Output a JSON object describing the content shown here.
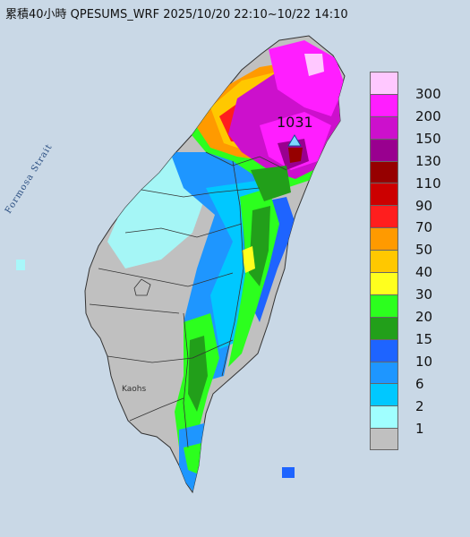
{
  "title": "累積40小時 QPESUMS_WRF 2025/10/20 22:10~10/22 14:10",
  "sea_label": "Formosa Strait",
  "city_label": "Kaohs",
  "max_value": "1031",
  "legend": [
    {
      "label": "300",
      "color": "#ffc8ff"
    },
    {
      "label": "200",
      "color": "#ff1eff"
    },
    {
      "label": "150",
      "color": "#cc10cc"
    },
    {
      "label": "130",
      "color": "#99008f"
    },
    {
      "label": "110",
      "color": "#960000"
    },
    {
      "label": "90",
      "color": "#cc0000"
    },
    {
      "label": "70",
      "color": "#ff1e1e"
    },
    {
      "label": "50",
      "color": "#ff9a00"
    },
    {
      "label": "40",
      "color": "#ffc800"
    },
    {
      "label": "30",
      "color": "#ffff1e"
    },
    {
      "label": "20",
      "color": "#2cff1e"
    },
    {
      "label": "15",
      "color": "#229f1a"
    },
    {
      "label": "10",
      "color": "#1e64ff"
    },
    {
      "label": "6",
      "color": "#1e96ff"
    },
    {
      "label": "2",
      "color": "#00c8ff"
    },
    {
      "label": "1",
      "color": "#a0ffff"
    },
    {
      "label": "",
      "color": "#c0c0c0"
    }
  ]
}
